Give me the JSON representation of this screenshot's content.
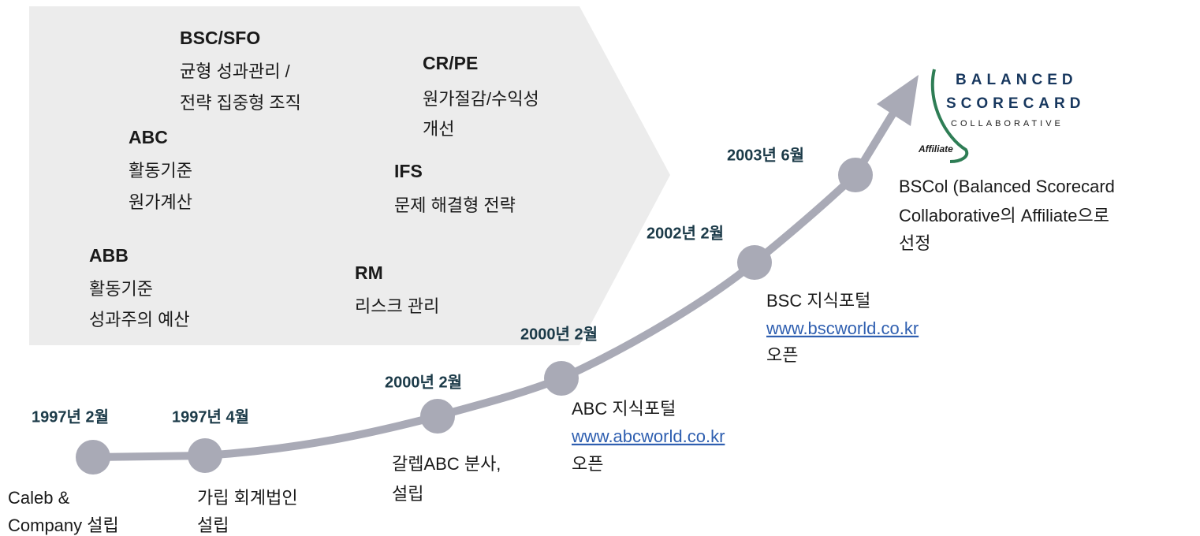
{
  "methods": [
    {
      "title": "BSC/SFO",
      "lines": [
        "균형 성과관리 /",
        "전략 집중형 조직"
      ]
    },
    {
      "title": "CR/PE",
      "lines": [
        "원가절감/수익성",
        "개선"
      ]
    },
    {
      "title": "ABC",
      "lines": [
        "활동기준",
        "원가계산"
      ]
    },
    {
      "title": "IFS",
      "lines": [
        "문제 해결형 전략"
      ]
    },
    {
      "title": "ABB",
      "lines": [
        "활동기준",
        "성과주의 예산"
      ]
    },
    {
      "title": "RM",
      "lines": [
        "리스크 관리"
      ]
    }
  ],
  "milestones": [
    {
      "date": "1997년 2월",
      "description": [
        "Caleb &",
        "Company 설립"
      ]
    },
    {
      "date": "1997년 4월",
      "description": [
        "가립 회계법인",
        "설립"
      ]
    },
    {
      "date": "2000년 2월",
      "description": [
        "갈렙ABC 분사,",
        "설립"
      ]
    },
    {
      "date": "2000년 2월",
      "description": [
        "ABC 지식포털"
      ],
      "link": "www.abcworld.co.kr",
      "suffix": "오픈"
    },
    {
      "date": "2002년 2월",
      "description": [
        "BSC 지식포털"
      ],
      "link": "www.bscworld.co.kr",
      "suffix": "오픈"
    },
    {
      "date": "2003년 6월",
      "description": [
        "BSCol (Balanced Scorecard",
        "Collaborative의 Affiliate으로",
        "선정"
      ]
    }
  ],
  "logo": {
    "line1": "BALANCED",
    "line2": "SCORECARD",
    "line3": "COLLABORATIVE",
    "badge": "Affiliate"
  }
}
